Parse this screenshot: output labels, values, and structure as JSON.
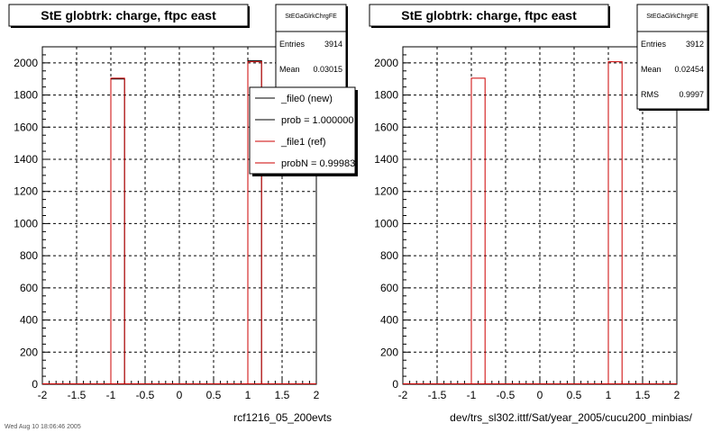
{
  "chart_data": [
    {
      "type": "bar",
      "title": "StE globtrk: charge, ftpc east",
      "xlabel": "rcf1216_05_200evts",
      "xlim": [
        -2,
        2
      ],
      "ylim": [
        0,
        2100
      ],
      "xticks": [
        "-2",
        "-1.5",
        "-1",
        "-0.5",
        "0",
        "0.5",
        "1",
        "1.5",
        "2"
      ],
      "yticks": [
        "0",
        "200",
        "400",
        "600",
        "800",
        "1000",
        "1200",
        "1400",
        "1600",
        "1800",
        "2000"
      ],
      "grid": true,
      "bin_width": 0.2,
      "series": [
        {
          "name": "_file0 (new)",
          "color": "#000000",
          "x": [
            -0.9,
            1.1
          ],
          "values": [
            1900,
            2014
          ]
        },
        {
          "name": "_file1 (ref)",
          "color": "#cc0000",
          "x": [
            -0.9,
            1.1
          ],
          "values": [
            1905,
            2007
          ]
        }
      ],
      "stats": {
        "name": "StEGaGlrkChrgFE",
        "rows": [
          [
            "Entries",
            "3914"
          ],
          [
            "Mean",
            "0.03015"
          ]
        ]
      },
      "legend": {
        "position": "top-right",
        "entries": [
          {
            "label": "_file0 (new)",
            "color": "#000000"
          },
          {
            "label": "prob = 1.000000",
            "color": "#000000"
          },
          {
            "label": "_file1 (ref)",
            "color": "#cc0000"
          },
          {
            "label": "probN = 0.99983",
            "color": "#cc0000"
          }
        ]
      },
      "footer": "Wed Aug 10 18:06:46 2005"
    },
    {
      "type": "bar",
      "title": "StE globtrk: charge, ftpc east",
      "xlabel": "dev/trs_sl302.ittf/Sat/year_2005/cucu200_minbias/",
      "xlim": [
        -2,
        2
      ],
      "ylim": [
        0,
        2100
      ],
      "xticks": [
        "-2",
        "-1.5",
        "-1",
        "-0.5",
        "0",
        "0.5",
        "1",
        "1.5",
        "2"
      ],
      "yticks": [
        "0",
        "200",
        "400",
        "600",
        "800",
        "1000",
        "1200",
        "1400",
        "1600",
        "1800",
        "2000"
      ],
      "grid": true,
      "bin_width": 0.2,
      "series": [
        {
          "name": "",
          "color": "#cc0000",
          "x": [
            -0.9,
            1.1
          ],
          "values": [
            1905,
            2007
          ]
        }
      ],
      "stats": {
        "name": "StEGaGlrkChrgFE",
        "rows": [
          [
            "Entries",
            "3912"
          ],
          [
            "Mean",
            "0.02454"
          ],
          [
            "RMS",
            "0.9997"
          ]
        ]
      },
      "legend": null,
      "footer": ""
    }
  ]
}
